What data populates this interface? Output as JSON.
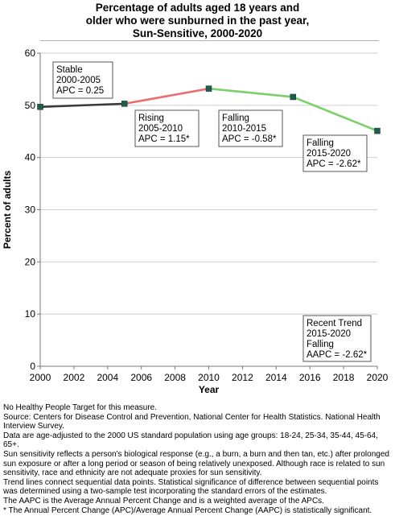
{
  "title_lines": [
    "Percentage of adults aged 18 years and",
    "older who were sunburned in the past year,",
    "Sun-Sensitive,  2000-2020"
  ],
  "chart_data": {
    "type": "line",
    "xlabel": "Year",
    "ylabel": "Percent of adults",
    "xlim": [
      2000,
      2020
    ],
    "ylim": [
      0,
      60
    ],
    "xticks": [
      2000,
      2002,
      2004,
      2006,
      2008,
      2010,
      2012,
      2014,
      2016,
      2018,
      2020
    ],
    "yticks": [
      0,
      10,
      20,
      30,
      40,
      50,
      60
    ],
    "grid": "horizontal",
    "points": [
      {
        "x": 2000,
        "y": 49.7
      },
      {
        "x": 2005,
        "y": 50.3
      },
      {
        "x": 2010,
        "y": 53.2
      },
      {
        "x": 2015,
        "y": 51.6
      },
      {
        "x": 2020,
        "y": 45.1
      }
    ],
    "segments": [
      {
        "from": 2000,
        "to": 2005,
        "trend": "Stable",
        "color": "#3a3a3a"
      },
      {
        "from": 2005,
        "to": 2010,
        "trend": "Rising",
        "color": "#ea6c6c"
      },
      {
        "from": 2010,
        "to": 2015,
        "trend": "Falling",
        "color": "#7cd069"
      },
      {
        "from": 2015,
        "to": 2020,
        "trend": "Falling",
        "color": "#7cd069"
      }
    ],
    "marker_color": "#1f5e4e",
    "annotations": [
      {
        "lines": [
          "Stable",
          "2000-2005",
          "APC =  0.25"
        ]
      },
      {
        "lines": [
          "Rising",
          "2005-2010",
          "APC =  1.15*"
        ]
      },
      {
        "lines": [
          "Falling",
          "2010-2015",
          "APC = -0.58*"
        ]
      },
      {
        "lines": [
          "Falling",
          "2015-2020",
          "APC = -2.62*"
        ]
      },
      {
        "lines": [
          "Recent Trend",
          "2015-2020",
          "Falling",
          "AAPC = -2.62*"
        ]
      }
    ]
  },
  "notes": [
    "No Healthy People Target for this measure.",
    "Source: Centers for Disease Control and Prevention, National Center for Health Statistics. National Health Interview Survey.",
    "Data are age-adjusted to the 2000 US standard population using age groups: 18-24, 25-34, 35-44, 45-64, 65+.",
    "Sun sensitivity reflects a person's biological response (e.g., a burn, a burn and then tan, etc.) after prolonged sun exposure or after a long period or season of being relatively unexposed. Although race is related to sun sensitivity, race and ethnicity are not adequate proxies for sun sensitivity.",
    "Trend lines connect sequential data points. Statistical significance of difference between sequential points was determined using a two-sample test incorporating the standard errors of the estimates.",
    "The AAPC is the Average Annual Percent Change and is a weighted average of the APCs.",
    "* The Annual Percent Change (APC)/Average Annual Percent Change (AAPC) is statistically significant."
  ]
}
